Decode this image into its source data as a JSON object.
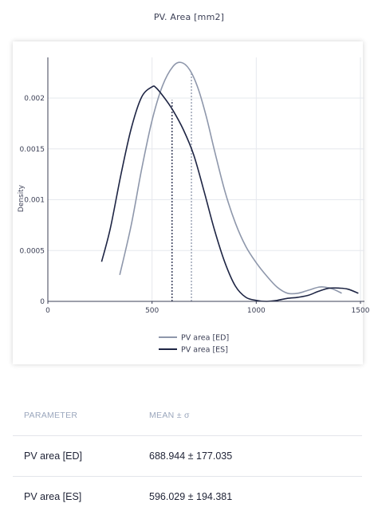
{
  "chart_data": {
    "type": "line",
    "title": "PV. Area [mm2]",
    "xlabel": "",
    "ylabel": "Density",
    "xlim": [
      0,
      1500
    ],
    "ylim": [
      0,
      0.0024
    ],
    "x_ticks": [
      {
        "value": 0,
        "label": "0"
      },
      {
        "value": 500,
        "label": "500"
      },
      {
        "value": 1000,
        "label": "1000"
      },
      {
        "value": 1500,
        "label": "1500"
      }
    ],
    "y_ticks": [
      {
        "value": 0,
        "label": "0"
      },
      {
        "value": 0.0005,
        "label": "0.0005"
      },
      {
        "value": 0.001,
        "label": "0.001"
      },
      {
        "value": 0.0015,
        "label": "0.0015"
      },
      {
        "value": 0.002,
        "label": "0.002"
      }
    ],
    "grid": true,
    "legend_position": "bottom",
    "series": [
      {
        "name": "PV area [ED]",
        "color": "#8e97ab",
        "x": [
          345,
          400,
          450,
          500,
          550,
          600,
          640,
          680,
          720,
          760,
          800,
          850,
          900,
          950,
          1000,
          1050,
          1100,
          1150,
          1200,
          1250,
          1300,
          1330,
          1370,
          1410
        ],
        "y": [
          0.00026,
          0.00075,
          0.0013,
          0.00178,
          0.00212,
          0.00231,
          0.00235,
          0.00228,
          0.0021,
          0.00182,
          0.00148,
          0.00108,
          0.00077,
          0.00054,
          0.00038,
          0.00025,
          0.00014,
          8e-05,
          8e-05,
          0.00011,
          0.00014,
          0.00014,
          0.00012,
          8e-05
        ]
      },
      {
        "name": "PV area [ES]",
        "color": "#1e2544",
        "x": [
          258,
          300,
          350,
          400,
          450,
          500,
          520,
          560,
          600,
          650,
          700,
          750,
          800,
          850,
          900,
          950,
          1000,
          1050,
          1100,
          1150,
          1200,
          1250,
          1300,
          1350,
          1400,
          1440,
          1490
        ],
        "y": [
          0.00039,
          0.00072,
          0.00124,
          0.0017,
          0.00201,
          0.00211,
          0.0021,
          0.002,
          0.00188,
          0.00169,
          0.00144,
          0.00108,
          0.0007,
          0.00038,
          0.00015,
          4e-05,
          1e-05,
          0.0,
          1e-05,
          3e-05,
          4e-05,
          6e-05,
          0.0001,
          0.00013,
          0.00013,
          0.00012,
          8e-05
        ]
      }
    ],
    "mean_lines": [
      {
        "series": "PV area [ED]",
        "x": 688.944,
        "y": 0.00224,
        "color": "#8e97ab"
      },
      {
        "series": "PV area [ES]",
        "x": 596.029,
        "y": 0.00198,
        "color": "#1e2544"
      }
    ]
  },
  "table": {
    "headers": [
      "PARAMETER",
      "MEAN ± σ"
    ],
    "rows": [
      {
        "parameter": "PV area [ED]",
        "mean": "688.944 ± 177.035"
      },
      {
        "parameter": "PV area [ES]",
        "mean": "596.029 ± 194.381"
      }
    ]
  }
}
